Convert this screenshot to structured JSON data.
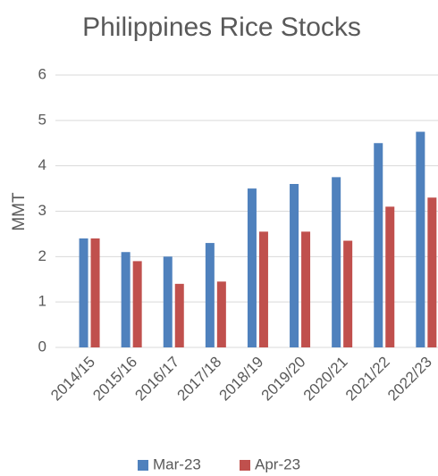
{
  "chart_data": {
    "type": "bar",
    "title": "Philippines Rice Stocks",
    "y_label": "MMT",
    "categories": [
      "2014/15",
      "2015/16",
      "2016/17",
      "2017/18",
      "2018/19",
      "2019/20",
      "2020/21",
      "2021/22",
      "2022/23"
    ],
    "series": [
      {
        "name": "Mar-23",
        "color": "#4f81bd",
        "values": [
          2.4,
          2.1,
          2.0,
          2.3,
          3.5,
          3.6,
          3.75,
          4.5,
          4.75
        ]
      },
      {
        "name": "Apr-23",
        "color": "#c0504d",
        "values": [
          2.4,
          1.9,
          1.4,
          1.45,
          2.55,
          2.55,
          2.35,
          3.1,
          3.3
        ]
      }
    ],
    "ylim": [
      0,
      6
    ],
    "yticks": [
      0,
      1,
      2,
      3,
      4,
      5,
      6
    ],
    "grid": true,
    "legend": "bottom"
  }
}
